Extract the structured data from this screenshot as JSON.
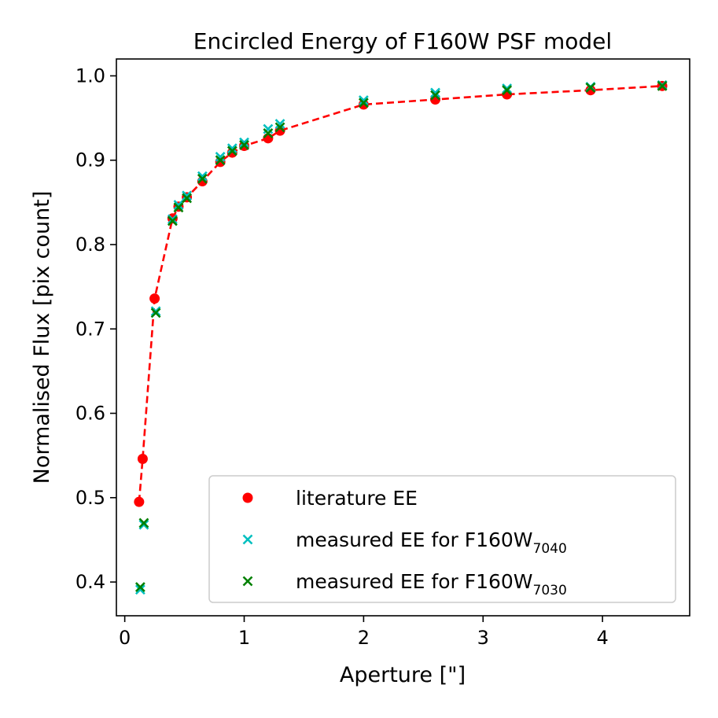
{
  "chart_data": {
    "type": "scatter",
    "title": "Encircled Energy of F160W PSF model",
    "xlabel": "Aperture [\"]",
    "ylabel": "Normalised Flux [pix count]",
    "xlim": [
      -0.07,
      4.73
    ],
    "ylim": [
      0.36,
      1.02
    ],
    "xticks": [
      0,
      1,
      2,
      3,
      4
    ],
    "yticks": [
      0.4,
      0.5,
      0.6,
      0.7,
      0.8,
      0.9,
      1.0
    ],
    "xtick_labels": [
      "0",
      "1",
      "2",
      "3",
      "4"
    ],
    "ytick_labels": [
      "0.4",
      "0.5",
      "0.6",
      "0.7",
      "0.8",
      "0.9",
      "1.0"
    ],
    "grid": false,
    "legend_position": "lower-right",
    "series": [
      {
        "name": "literature EE",
        "marker": "circle",
        "color": "#ff0000",
        "line": "dashed",
        "x": [
          0.12,
          0.15,
          0.25,
          0.4,
          0.45,
          0.52,
          0.65,
          0.8,
          0.9,
          1.0,
          1.2,
          1.3,
          2.0,
          2.6,
          3.2,
          3.9,
          4.5
        ],
        "y": [
          0.495,
          0.546,
          0.736,
          0.831,
          0.845,
          0.856,
          0.875,
          0.898,
          0.909,
          0.917,
          0.926,
          0.935,
          0.966,
          0.972,
          0.978,
          0.983,
          0.988
        ]
      },
      {
        "name": "measured EE for F160W",
        "name_sub": "7040",
        "marker": "x",
        "color": "#00bfbf",
        "x": [
          0.13,
          0.16,
          0.26,
          0.4,
          0.45,
          0.52,
          0.65,
          0.8,
          0.9,
          1.0,
          1.2,
          1.3,
          2.0,
          2.6,
          3.2,
          3.9,
          4.5
        ],
        "y": [
          0.391,
          0.468,
          0.721,
          0.83,
          0.847,
          0.858,
          0.881,
          0.904,
          0.914,
          0.921,
          0.937,
          0.943,
          0.971,
          0.98,
          0.985,
          0.987,
          0.989
        ]
      },
      {
        "name": "measured EE for F160W",
        "name_sub": "7030",
        "marker": "x",
        "color": "#008000",
        "x": [
          0.13,
          0.16,
          0.26,
          0.4,
          0.45,
          0.52,
          0.65,
          0.8,
          0.9,
          1.0,
          1.2,
          1.3,
          2.0,
          2.6,
          3.2,
          3.9,
          4.5
        ],
        "y": [
          0.394,
          0.47,
          0.719,
          0.828,
          0.844,
          0.855,
          0.878,
          0.9,
          0.911,
          0.918,
          0.932,
          0.939,
          0.968,
          0.977,
          0.983,
          0.986,
          0.988
        ]
      }
    ]
  }
}
